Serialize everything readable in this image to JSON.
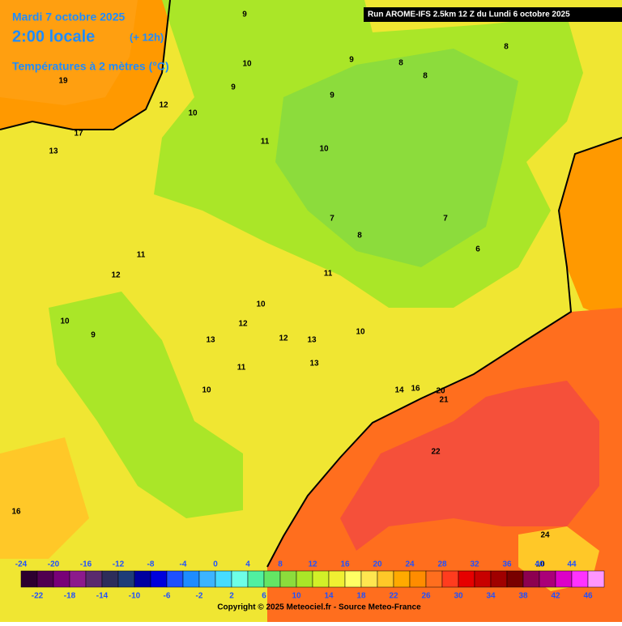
{
  "header": {
    "date": "Mardi 7 octobre 2025",
    "time": "2:00 locale",
    "offset": "(+ 12h)",
    "field": "Températures à 2 mètres (°C)",
    "run": "Run AROME-IFS 2.5km 12 Z du Lundi 6 octobre 2025"
  },
  "map": {
    "contour_labels": [
      9,
      8,
      8,
      9,
      10,
      9,
      12,
      10,
      11,
      17,
      19,
      13,
      10,
      8,
      9,
      8,
      7,
      6,
      7,
      11,
      12,
      10,
      11,
      14,
      16,
      13,
      12,
      11,
      10,
      9,
      10,
      12,
      13,
      13,
      10,
      16,
      20,
      21,
      22,
      24,
      10
    ]
  },
  "legend": {
    "ticks_top": [
      -24,
      -20,
      -16,
      -12,
      -8,
      -4,
      0,
      4,
      8,
      12,
      16,
      20,
      24,
      28,
      32,
      36,
      40,
      44
    ],
    "ticks_bottom": [
      -22,
      -18,
      -14,
      -10,
      -6,
      -2,
      2,
      6,
      10,
      14,
      18,
      22,
      26,
      30,
      34,
      38,
      42,
      46
    ],
    "colors": [
      "#2d0030",
      "#500050",
      "#780078",
      "#8c1a8c",
      "#5a2a6e",
      "#2d2d5a",
      "#1e3c78",
      "#0000a0",
      "#0000dc",
      "#1e50ff",
      "#1e8cff",
      "#3cb4ff",
      "#46dcff",
      "#6effe6",
      "#50f0a0",
      "#64e664",
      "#8cdc3c",
      "#aae628",
      "#d2f028",
      "#f0f032",
      "#ffff64",
      "#ffe650",
      "#ffc828",
      "#ffaa00",
      "#ff8c00",
      "#ff6e1e",
      "#ff3c1e",
      "#e60000",
      "#c80000",
      "#a00000",
      "#780000",
      "#8c0050",
      "#aa0078",
      "#dc00c8",
      "#ff32ff",
      "#ff96ff"
    ]
  },
  "footer": {
    "copyright": "Copyright © 2025 Meteociel.fr - Source Meteo-France"
  }
}
